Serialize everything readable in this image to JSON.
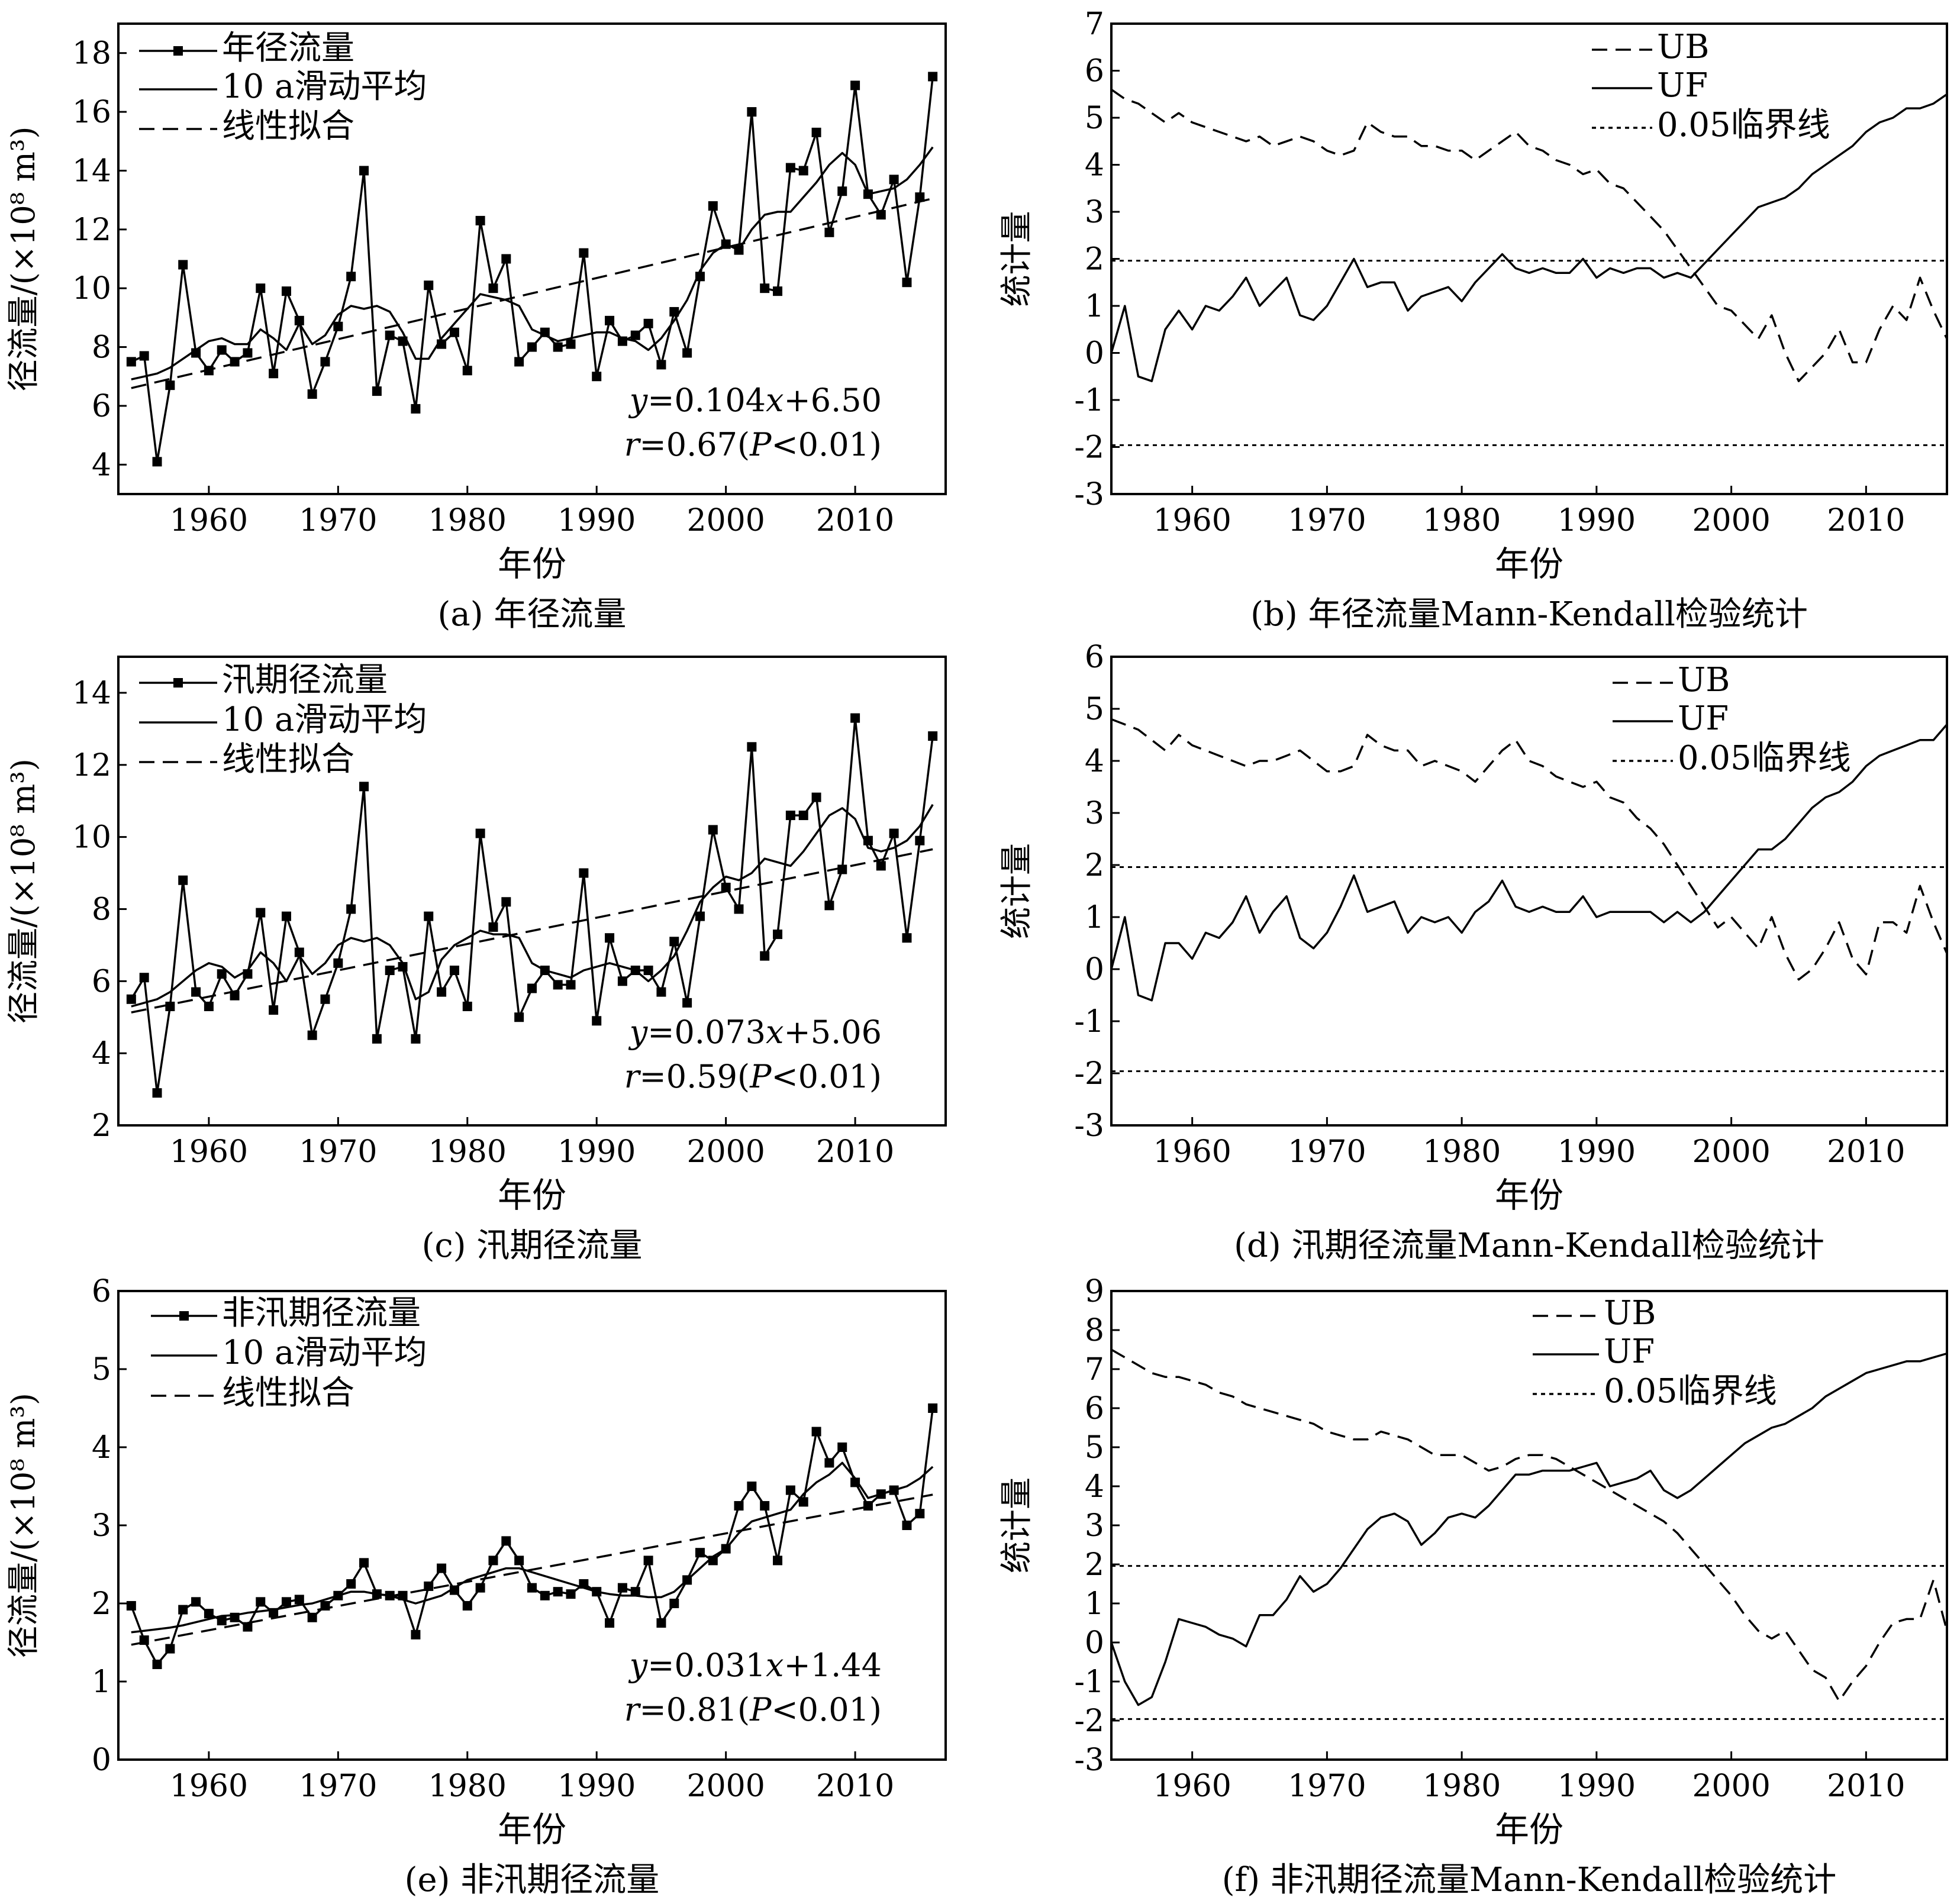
{
  "chart_data": [
    {
      "id": "a",
      "type": "line",
      "caption": "(a) 年径流量",
      "xlabel": "年份",
      "ylabel": "径流量/(×10⁸ m³)",
      "xlim": [
        1953,
        2017
      ],
      "ylim": [
        3,
        19
      ],
      "xticks": [
        1960,
        1970,
        1980,
        1990,
        2000,
        2010
      ],
      "yticks": [
        4,
        6,
        8,
        10,
        12,
        14,
        16,
        18
      ],
      "x_start": 1954,
      "series": [
        {
          "name": "年径流量",
          "style": "line-square",
          "values": [
            7.5,
            7.7,
            4.1,
            6.7,
            10.8,
            7.8,
            7.2,
            7.9,
            7.5,
            7.8,
            10.0,
            7.1,
            9.9,
            8.9,
            6.4,
            7.5,
            8.7,
            10.4,
            14.0,
            6.5,
            8.4,
            8.2,
            5.9,
            10.1,
            8.1,
            8.5,
            7.2,
            12.3,
            10.0,
            11.0,
            7.5,
            8.0,
            8.5,
            8.0,
            8.1,
            11.2,
            7.0,
            8.9,
            8.2,
            8.4,
            8.8,
            7.4,
            9.2,
            7.8,
            10.4,
            12.8,
            11.5,
            11.3,
            16.0,
            10.0,
            9.9,
            14.1,
            14.0,
            15.3,
            11.9,
            13.3,
            16.9,
            13.2,
            12.5,
            13.7,
            10.2,
            13.1,
            17.2
          ]
        },
        {
          "name": "10 a滑动平均",
          "style": "solid",
          "values": [
            6.9,
            7.0,
            7.1,
            7.3,
            7.6,
            7.9,
            8.2,
            8.3,
            8.1,
            8.1,
            8.6,
            8.3,
            7.9,
            8.8,
            8.1,
            8.4,
            9.1,
            9.4,
            9.3,
            9.4,
            9.2,
            8.5,
            7.6,
            7.6,
            8.3,
            8.8,
            9.3,
            9.8,
            9.7,
            9.6,
            9.4,
            8.6,
            8.4,
            8.2,
            8.3,
            8.4,
            8.5,
            8.5,
            8.3,
            8.2,
            7.9,
            8.3,
            8.9,
            9.6,
            10.6,
            11.2,
            11.5,
            11.3,
            12.0,
            12.5,
            12.6,
            12.6,
            13.1,
            13.6,
            14.2,
            14.6,
            14.2,
            13.2,
            13.3,
            13.4,
            13.7,
            14.2,
            14.8
          ]
        },
        {
          "name": "线性拟合",
          "style": "dashed",
          "slope": 0.104,
          "intercept": 6.5
        }
      ],
      "annotations": [
        "y=0.104x+6.50",
        "r=0.67(P<0.01)"
      ]
    },
    {
      "id": "b",
      "type": "line",
      "caption": "(b) 年径流量Mann-Kendall检验统计",
      "xlabel": "年份",
      "ylabel": "统计量",
      "xlim": [
        1954,
        2016
      ],
      "ylim": [
        -3,
        7
      ],
      "xticks": [
        1960,
        1970,
        1980,
        1990,
        2000,
        2010
      ],
      "yticks": [
        -3,
        -2,
        -1,
        0,
        1,
        2,
        3,
        4,
        5,
        6,
        7
      ],
      "x_start": 1954,
      "series": [
        {
          "name": "UB",
          "style": "dashed",
          "values": [
            5.6,
            5.4,
            5.3,
            5.1,
            4.9,
            5.1,
            4.9,
            4.8,
            4.7,
            4.6,
            4.5,
            4.6,
            4.4,
            4.5,
            4.6,
            4.5,
            4.3,
            4.2,
            4.3,
            4.9,
            4.7,
            4.6,
            4.6,
            4.4,
            4.4,
            4.3,
            4.3,
            4.1,
            4.3,
            4.5,
            4.7,
            4.4,
            4.3,
            4.1,
            4.0,
            3.8,
            3.9,
            3.6,
            3.5,
            3.2,
            2.9,
            2.6,
            2.2,
            1.8,
            1.4,
            1.0,
            0.9,
            0.6,
            0.3,
            0.8,
            0.0,
            -0.6,
            -0.3,
            0.0,
            0.5,
            -0.2,
            -0.2,
            0.5,
            1.0,
            0.7,
            1.6,
            0.9,
            0.3
          ]
        },
        {
          "name": "UF",
          "style": "solid",
          "values": [
            0.0,
            1.0,
            -0.5,
            -0.6,
            0.5,
            0.9,
            0.5,
            1.0,
            0.9,
            1.2,
            1.6,
            1.0,
            1.3,
            1.6,
            0.8,
            0.7,
            1.0,
            1.5,
            2.0,
            1.4,
            1.5,
            1.5,
            0.9,
            1.2,
            1.3,
            1.4,
            1.1,
            1.5,
            1.8,
            2.1,
            1.8,
            1.7,
            1.8,
            1.7,
            1.7,
            2.0,
            1.6,
            1.8,
            1.7,
            1.8,
            1.8,
            1.6,
            1.7,
            1.6,
            1.9,
            2.2,
            2.5,
            2.8,
            3.1,
            3.2,
            3.3,
            3.5,
            3.8,
            4.0,
            4.2,
            4.4,
            4.7,
            4.9,
            5.0,
            5.2,
            5.2,
            5.3,
            5.5
          ]
        },
        {
          "name": "0.05临界线",
          "style": "dotted",
          "levels": [
            1.96,
            -1.96
          ]
        }
      ]
    },
    {
      "id": "c",
      "type": "line",
      "caption": "(c) 汛期径流量",
      "xlabel": "年份",
      "ylabel": "径流量/(×10⁸ m³)",
      "xlim": [
        1953,
        2017
      ],
      "ylim": [
        2,
        15
      ],
      "xticks": [
        1960,
        1970,
        1980,
        1990,
        2000,
        2010
      ],
      "yticks": [
        2,
        4,
        6,
        8,
        10,
        12,
        14
      ],
      "x_start": 1954,
      "series": [
        {
          "name": "汛期径流量",
          "style": "line-square",
          "values": [
            5.5,
            6.1,
            2.9,
            5.3,
            8.8,
            5.7,
            5.3,
            6.2,
            5.6,
            6.2,
            7.9,
            5.2,
            7.8,
            6.8,
            4.5,
            5.5,
            6.5,
            8.0,
            11.4,
            4.4,
            6.3,
            6.4,
            4.4,
            7.8,
            5.7,
            6.3,
            5.3,
            10.1,
            7.5,
            8.2,
            5.0,
            5.8,
            6.3,
            5.9,
            5.9,
            9.0,
            4.9,
            7.2,
            6.0,
            6.3,
            6.3,
            5.7,
            7.1,
            5.4,
            7.8,
            10.2,
            8.6,
            8.0,
            12.5,
            6.7,
            7.3,
            10.6,
            10.6,
            11.1,
            8.1,
            9.1,
            13.3,
            9.9,
            9.2,
            10.1,
            7.2,
            9.9,
            12.8
          ]
        },
        {
          "name": "10 a滑动平均",
          "style": "solid",
          "values": [
            5.3,
            5.4,
            5.5,
            5.7,
            6.0,
            6.3,
            6.5,
            6.4,
            6.1,
            6.3,
            6.8,
            6.5,
            6.0,
            6.7,
            6.2,
            6.5,
            7.0,
            7.2,
            7.1,
            7.2,
            7.0,
            6.5,
            5.5,
            5.7,
            6.6,
            7.0,
            7.2,
            7.4,
            7.3,
            7.3,
            7.2,
            6.5,
            6.3,
            6.2,
            6.1,
            6.3,
            6.4,
            6.5,
            6.4,
            6.3,
            6.0,
            6.3,
            6.7,
            7.4,
            8.2,
            8.6,
            8.9,
            8.8,
            9.0,
            9.4,
            9.3,
            9.2,
            9.6,
            10.1,
            10.6,
            10.8,
            10.5,
            9.7,
            9.6,
            9.7,
            9.9,
            10.3,
            10.9
          ]
        },
        {
          "name": "线性拟合",
          "style": "dashed",
          "slope": 0.073,
          "intercept": 5.06
        }
      ],
      "annotations": [
        "y=0.073x+5.06",
        "r=0.59(P<0.01)"
      ]
    },
    {
      "id": "d",
      "type": "line",
      "caption": "(d) 汛期径流量Mann-Kendall检验统计",
      "xlabel": "年份",
      "ylabel": "统计量",
      "xlim": [
        1954,
        2016
      ],
      "ylim": [
        -3,
        6
      ],
      "xticks": [
        1960,
        1970,
        1980,
        1990,
        2000,
        2010
      ],
      "yticks": [
        -3,
        -2,
        -1,
        0,
        1,
        2,
        3,
        4,
        5,
        6
      ],
      "x_start": 1954,
      "series": [
        {
          "name": "UB",
          "style": "dashed",
          "values": [
            4.8,
            4.7,
            4.6,
            4.4,
            4.2,
            4.5,
            4.3,
            4.2,
            4.1,
            4.0,
            3.9,
            4.0,
            4.0,
            4.1,
            4.2,
            4.0,
            3.8,
            3.8,
            3.9,
            4.5,
            4.3,
            4.2,
            4.2,
            3.9,
            4.0,
            3.9,
            3.8,
            3.6,
            3.9,
            4.2,
            4.4,
            4.0,
            3.9,
            3.7,
            3.6,
            3.5,
            3.6,
            3.3,
            3.2,
            2.9,
            2.7,
            2.4,
            2.0,
            1.6,
            1.2,
            0.8,
            1.0,
            0.7,
            0.4,
            1.0,
            0.3,
            -0.2,
            0.0,
            0.4,
            0.9,
            0.2,
            -0.1,
            0.9,
            0.9,
            0.7,
            1.6,
            0.9,
            0.3
          ]
        },
        {
          "name": "UF",
          "style": "solid",
          "values": [
            0.0,
            1.0,
            -0.5,
            -0.6,
            0.5,
            0.5,
            0.2,
            0.7,
            0.6,
            0.9,
            1.4,
            0.7,
            1.1,
            1.4,
            0.6,
            0.4,
            0.7,
            1.2,
            1.8,
            1.1,
            1.2,
            1.3,
            0.7,
            1.0,
            0.9,
            1.0,
            0.7,
            1.1,
            1.3,
            1.7,
            1.2,
            1.1,
            1.2,
            1.1,
            1.1,
            1.4,
            1.0,
            1.1,
            1.1,
            1.1,
            1.1,
            0.9,
            1.1,
            0.9,
            1.1,
            1.4,
            1.7,
            2.0,
            2.3,
            2.3,
            2.5,
            2.8,
            3.1,
            3.3,
            3.4,
            3.6,
            3.9,
            4.1,
            4.2,
            4.3,
            4.4,
            4.4,
            4.7
          ]
        },
        {
          "name": "0.05临界线",
          "style": "dotted",
          "levels": [
            1.96,
            -1.96
          ]
        }
      ]
    },
    {
      "id": "e",
      "type": "line",
      "caption": "(e) 非汛期径流量",
      "xlabel": "年份",
      "ylabel": "径流量/(×10⁸ m³)",
      "xlim": [
        1953,
        2017
      ],
      "ylim": [
        0,
        6
      ],
      "xticks": [
        1960,
        1970,
        1980,
        1990,
        2000,
        2010
      ],
      "yticks": [
        0,
        1,
        2,
        3,
        4,
        5,
        6
      ],
      "x_start": 1954,
      "series": [
        {
          "name": "非汛期径流量",
          "style": "line-square",
          "values": [
            1.97,
            1.53,
            1.22,
            1.42,
            1.92,
            2.02,
            1.87,
            1.78,
            1.82,
            1.7,
            2.02,
            1.88,
            2.02,
            2.05,
            1.82,
            1.97,
            2.1,
            2.25,
            2.52,
            2.12,
            2.1,
            2.1,
            1.6,
            2.22,
            2.45,
            2.17,
            1.97,
            2.2,
            2.55,
            2.8,
            2.55,
            2.2,
            2.1,
            2.15,
            2.12,
            2.25,
            2.15,
            1.75,
            2.2,
            2.15,
            2.55,
            1.75,
            2.0,
            2.3,
            2.65,
            2.55,
            2.7,
            3.25,
            3.5,
            3.25,
            2.55,
            3.45,
            3.3,
            4.2,
            3.8,
            4.0,
            3.55,
            3.25,
            3.4,
            3.45,
            3.0,
            3.15,
            4.5
          ]
        },
        {
          "name": "10 a滑动平均",
          "style": "solid",
          "values": [
            1.63,
            1.65,
            1.67,
            1.69,
            1.72,
            1.76,
            1.8,
            1.84,
            1.85,
            1.88,
            1.9,
            1.92,
            1.95,
            1.98,
            2.0,
            2.05,
            2.1,
            2.15,
            2.15,
            2.12,
            2.1,
            2.05,
            2.0,
            2.05,
            2.1,
            2.2,
            2.3,
            2.35,
            2.4,
            2.45,
            2.45,
            2.4,
            2.35,
            2.3,
            2.25,
            2.2,
            2.15,
            2.12,
            2.1,
            2.1,
            2.08,
            2.08,
            2.15,
            2.3,
            2.45,
            2.6,
            2.7,
            2.9,
            3.05,
            3.1,
            3.15,
            3.2,
            3.4,
            3.55,
            3.65,
            3.8,
            3.6,
            3.35,
            3.4,
            3.45,
            3.5,
            3.6,
            3.75
          ]
        },
        {
          "name": "线性拟合",
          "style": "dashed",
          "slope": 0.031,
          "intercept": 1.44
        }
      ],
      "annotations": [
        "y=0.031x+1.44",
        "r=0.81(P<0.01)"
      ]
    },
    {
      "id": "f",
      "type": "line",
      "caption": "(f) 非汛期径流量Mann-Kendall检验统计",
      "xlabel": "年份",
      "ylabel": "统计量",
      "xlim": [
        1954,
        2016
      ],
      "ylim": [
        -3,
        9
      ],
      "xticks": [
        1960,
        1970,
        1980,
        1990,
        2000,
        2010
      ],
      "yticks": [
        -3,
        -2,
        -1,
        0,
        1,
        2,
        3,
        4,
        5,
        6,
        7,
        8,
        9
      ],
      "x_start": 1954,
      "series": [
        {
          "name": "UB",
          "style": "dashed",
          "values": [
            7.5,
            7.3,
            7.1,
            6.9,
            6.8,
            6.8,
            6.7,
            6.6,
            6.4,
            6.3,
            6.1,
            6.0,
            5.9,
            5.8,
            5.7,
            5.6,
            5.4,
            5.3,
            5.2,
            5.2,
            5.4,
            5.3,
            5.2,
            5.0,
            4.8,
            4.8,
            4.8,
            4.6,
            4.4,
            4.5,
            4.7,
            4.8,
            4.8,
            4.7,
            4.5,
            4.3,
            4.1,
            3.9,
            3.7,
            3.5,
            3.3,
            3.1,
            2.8,
            2.4,
            2.0,
            1.6,
            1.2,
            0.7,
            0.3,
            0.1,
            0.3,
            -0.2,
            -0.7,
            -0.9,
            -1.5,
            -1.0,
            -0.6,
            0.0,
            0.5,
            0.6,
            0.6,
            1.6,
            0.3
          ]
        },
        {
          "name": "UF",
          "style": "solid",
          "values": [
            0.0,
            -1.0,
            -1.6,
            -1.4,
            -0.5,
            0.6,
            0.5,
            0.4,
            0.2,
            0.1,
            -0.1,
            0.7,
            0.7,
            1.1,
            1.7,
            1.3,
            1.5,
            1.9,
            2.4,
            2.9,
            3.2,
            3.3,
            3.1,
            2.5,
            2.8,
            3.2,
            3.3,
            3.2,
            3.5,
            3.9,
            4.3,
            4.3,
            4.4,
            4.4,
            4.4,
            4.5,
            4.6,
            4.0,
            4.1,
            4.2,
            4.4,
            3.9,
            3.7,
            3.9,
            4.2,
            4.5,
            4.8,
            5.1,
            5.3,
            5.5,
            5.6,
            5.8,
            6.0,
            6.3,
            6.5,
            6.7,
            6.9,
            7.0,
            7.1,
            7.2,
            7.2,
            7.3,
            7.4
          ]
        },
        {
          "name": "0.05临界线",
          "style": "dotted",
          "levels": [
            1.96,
            -1.96
          ]
        }
      ]
    }
  ]
}
